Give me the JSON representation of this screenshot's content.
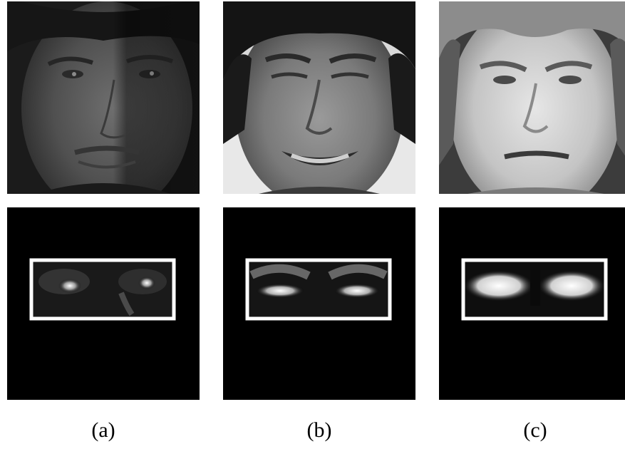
{
  "figure": {
    "captions": [
      "(a)",
      "(b)",
      "(c)"
    ],
    "colors": {
      "background": "#ffffff",
      "mask_background": "#000000",
      "eye_box_outline": "#ffffff"
    },
    "panels": [
      {
        "row": "face",
        "column": "a",
        "icon": "face-photo-grayscale-dim"
      },
      {
        "row": "face",
        "column": "b",
        "icon": "face-photo-grayscale-smiling"
      },
      {
        "row": "face",
        "column": "c",
        "icon": "face-photo-grayscale-bright"
      },
      {
        "row": "eye-region",
        "column": "a",
        "icon": "eye-region-mask-with-box"
      },
      {
        "row": "eye-region",
        "column": "b",
        "icon": "eye-region-mask-with-box"
      },
      {
        "row": "eye-region",
        "column": "c",
        "icon": "eye-region-mask-with-box"
      }
    ]
  }
}
